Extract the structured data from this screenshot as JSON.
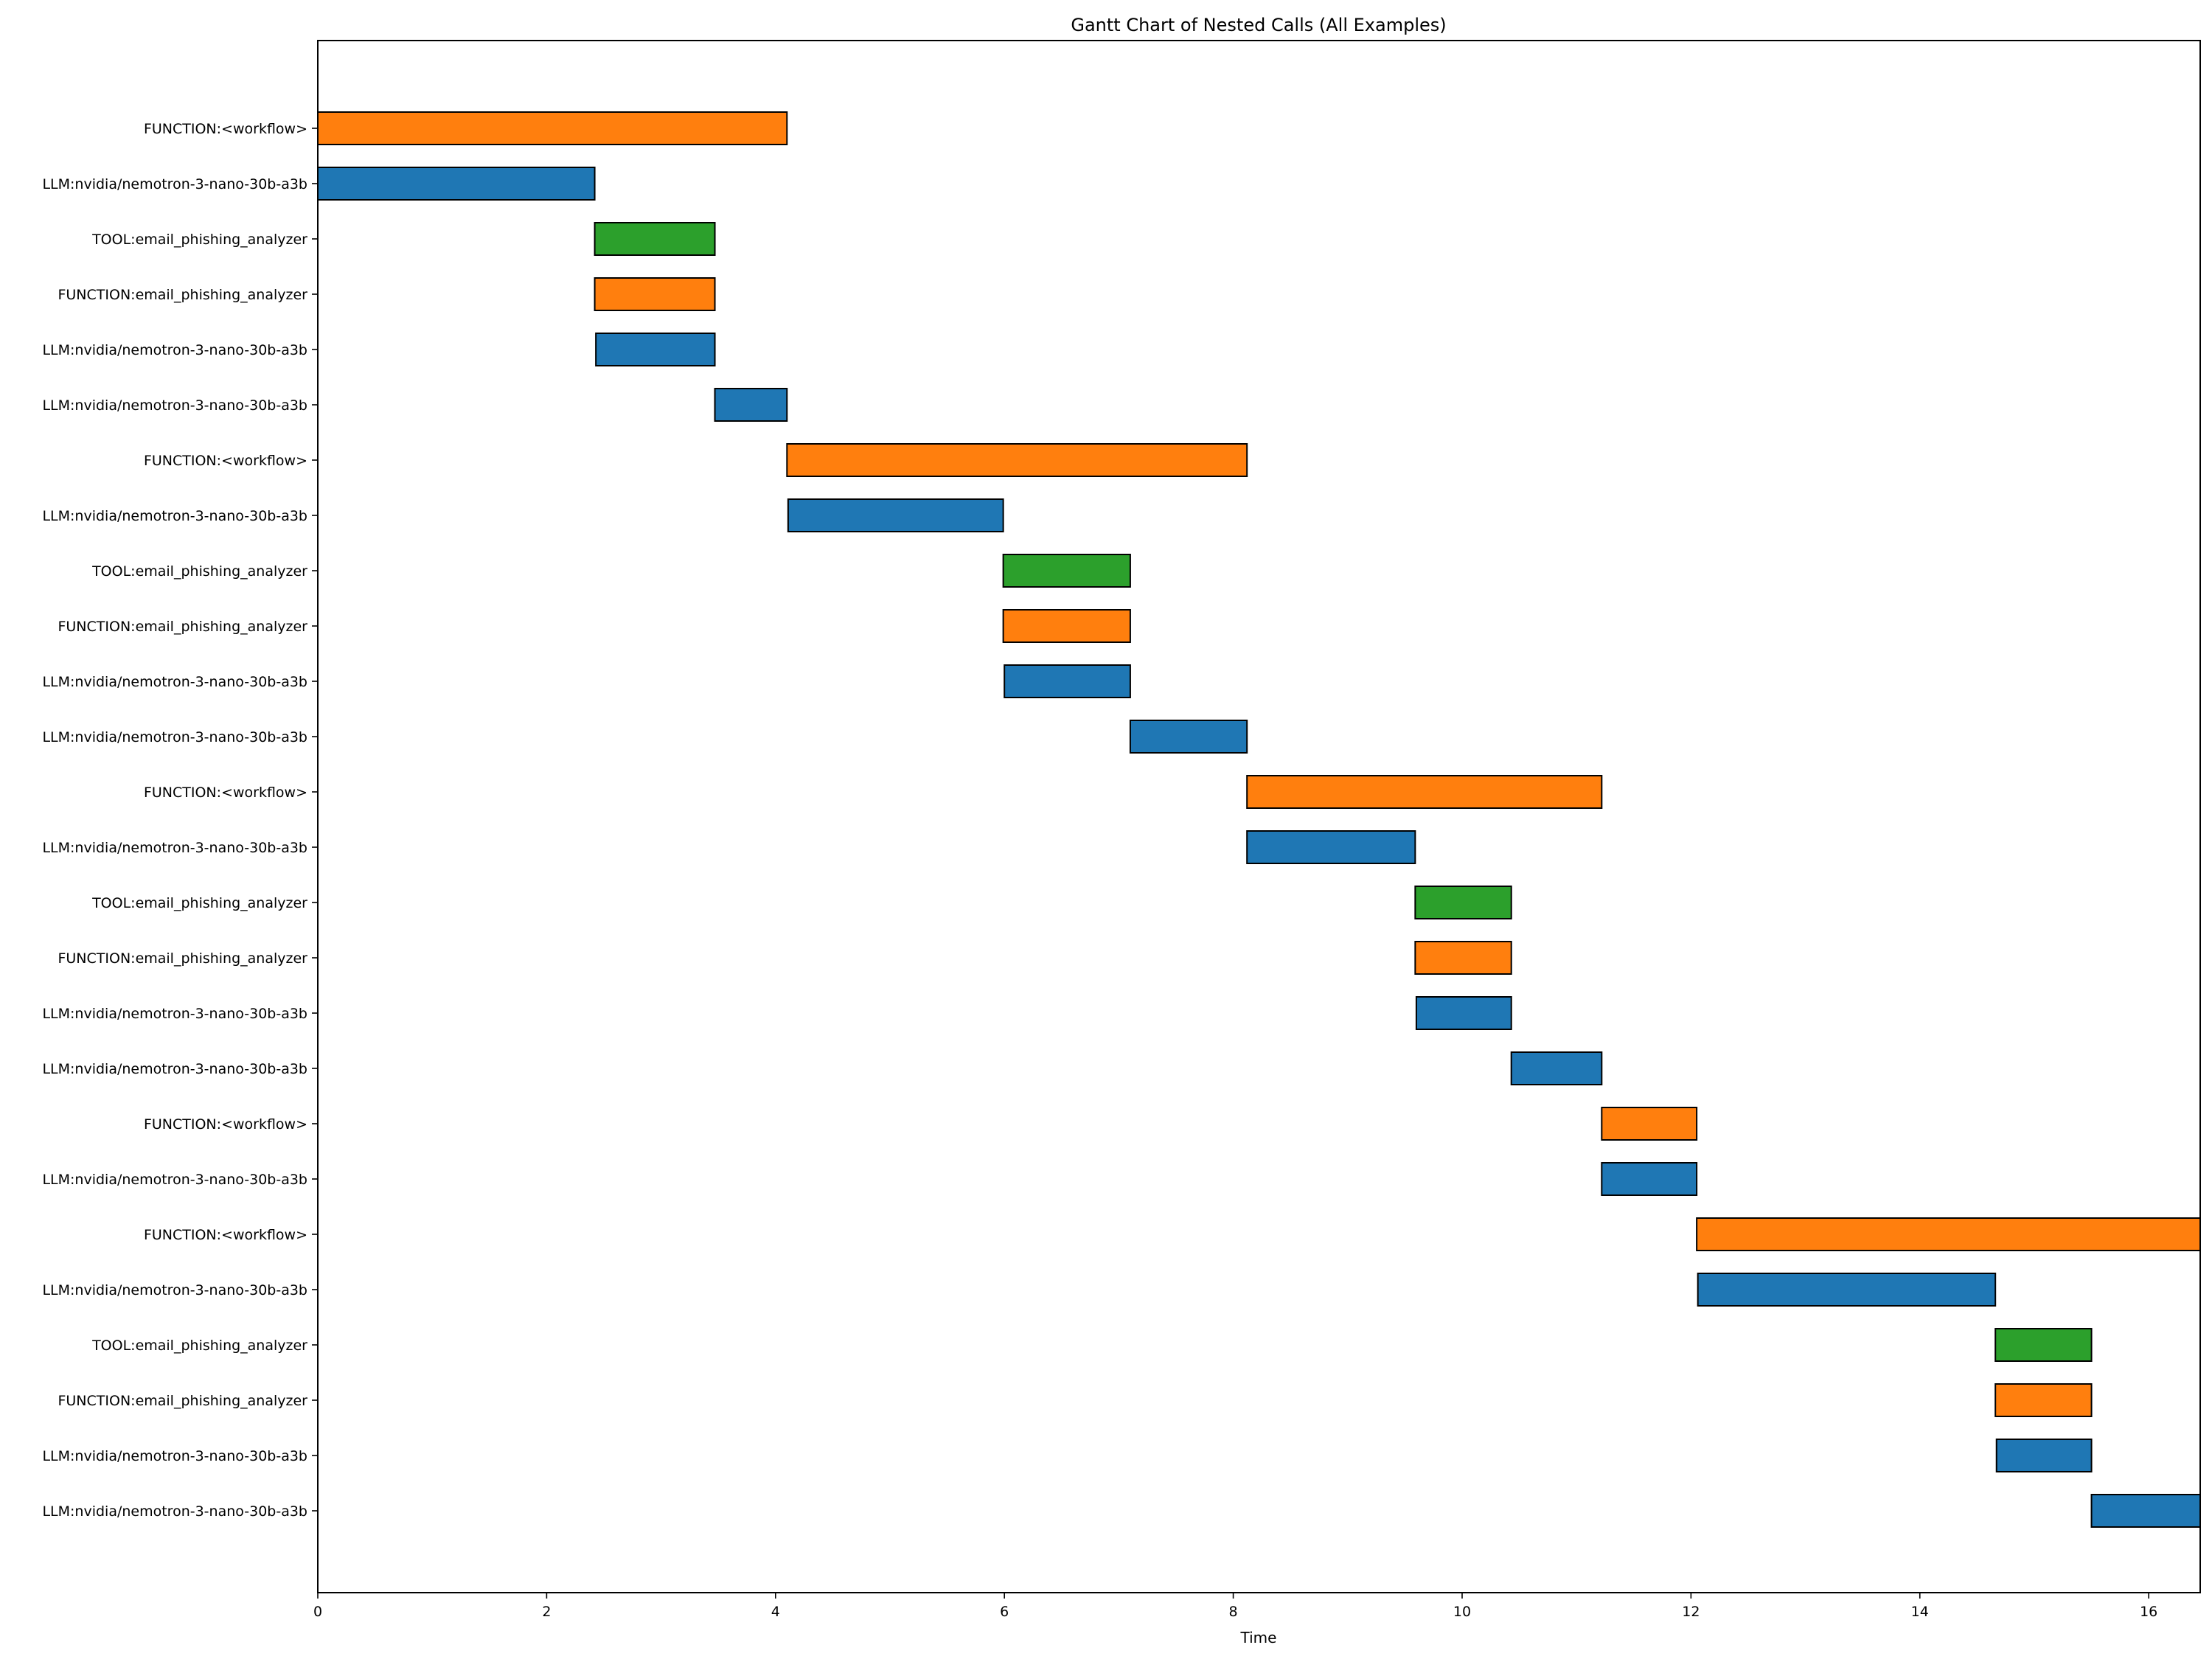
{
  "chart_data": {
    "type": "gantt",
    "title": "Gantt Chart of Nested Calls (All Examples)",
    "xlabel": "Time",
    "ylabel": "",
    "xlim": [
      0,
      16.45
    ],
    "xticks": [
      0,
      2,
      4,
      6,
      8,
      10,
      12,
      14,
      16
    ],
    "grid": false,
    "colors": {
      "FUNCTION": "#ff7f0e",
      "LLM": "#1f77b4",
      "TOOL": "#2ca02c"
    },
    "rows": [
      {
        "label": "FUNCTION:<workflow>",
        "kind": "FUNCTION",
        "start": 0.0,
        "end": 4.1
      },
      {
        "label": "LLM:nvidia/nemotron-3-nano-30b-a3b",
        "kind": "LLM",
        "start": 0.0,
        "end": 2.42
      },
      {
        "label": "TOOL:email_phishing_analyzer",
        "kind": "TOOL",
        "start": 2.42,
        "end": 3.47
      },
      {
        "label": "FUNCTION:email_phishing_analyzer",
        "kind": "FUNCTION",
        "start": 2.42,
        "end": 3.47
      },
      {
        "label": "LLM:nvidia/nemotron-3-nano-30b-a3b",
        "kind": "LLM",
        "start": 2.43,
        "end": 3.47
      },
      {
        "label": "LLM:nvidia/nemotron-3-nano-30b-a3b",
        "kind": "LLM",
        "start": 3.47,
        "end": 4.1
      },
      {
        "label": "FUNCTION:<workflow>",
        "kind": "FUNCTION",
        "start": 4.1,
        "end": 8.12
      },
      {
        "label": "LLM:nvidia/nemotron-3-nano-30b-a3b",
        "kind": "LLM",
        "start": 4.11,
        "end": 5.99
      },
      {
        "label": "TOOL:email_phishing_analyzer",
        "kind": "TOOL",
        "start": 5.99,
        "end": 7.1
      },
      {
        "label": "FUNCTION:email_phishing_analyzer",
        "kind": "FUNCTION",
        "start": 5.99,
        "end": 7.1
      },
      {
        "label": "LLM:nvidia/nemotron-3-nano-30b-a3b",
        "kind": "LLM",
        "start": 6.0,
        "end": 7.1
      },
      {
        "label": "LLM:nvidia/nemotron-3-nano-30b-a3b",
        "kind": "LLM",
        "start": 7.1,
        "end": 8.12
      },
      {
        "label": "FUNCTION:<workflow>",
        "kind": "FUNCTION",
        "start": 8.12,
        "end": 11.22
      },
      {
        "label": "LLM:nvidia/nemotron-3-nano-30b-a3b",
        "kind": "LLM",
        "start": 8.12,
        "end": 9.59
      },
      {
        "label": "TOOL:email_phishing_analyzer",
        "kind": "TOOL",
        "start": 9.59,
        "end": 10.43
      },
      {
        "label": "FUNCTION:email_phishing_analyzer",
        "kind": "FUNCTION",
        "start": 9.59,
        "end": 10.43
      },
      {
        "label": "LLM:nvidia/nemotron-3-nano-30b-a3b",
        "kind": "LLM",
        "start": 9.6,
        "end": 10.43
      },
      {
        "label": "LLM:nvidia/nemotron-3-nano-30b-a3b",
        "kind": "LLM",
        "start": 10.43,
        "end": 11.22
      },
      {
        "label": "FUNCTION:<workflow>",
        "kind": "FUNCTION",
        "start": 11.22,
        "end": 12.05
      },
      {
        "label": "LLM:nvidia/nemotron-3-nano-30b-a3b",
        "kind": "LLM",
        "start": 11.22,
        "end": 12.05
      },
      {
        "label": "FUNCTION:<workflow>",
        "kind": "FUNCTION",
        "start": 12.05,
        "end": 16.45
      },
      {
        "label": "LLM:nvidia/nemotron-3-nano-30b-a3b",
        "kind": "LLM",
        "start": 12.06,
        "end": 14.66
      },
      {
        "label": "TOOL:email_phishing_analyzer",
        "kind": "TOOL",
        "start": 14.66,
        "end": 15.5
      },
      {
        "label": "FUNCTION:email_phishing_analyzer",
        "kind": "FUNCTION",
        "start": 14.66,
        "end": 15.5
      },
      {
        "label": "LLM:nvidia/nemotron-3-nano-30b-a3b",
        "kind": "LLM",
        "start": 14.67,
        "end": 15.5
      },
      {
        "label": "LLM:nvidia/nemotron-3-nano-30b-a3b",
        "kind": "LLM",
        "start": 15.5,
        "end": 16.45
      }
    ]
  }
}
